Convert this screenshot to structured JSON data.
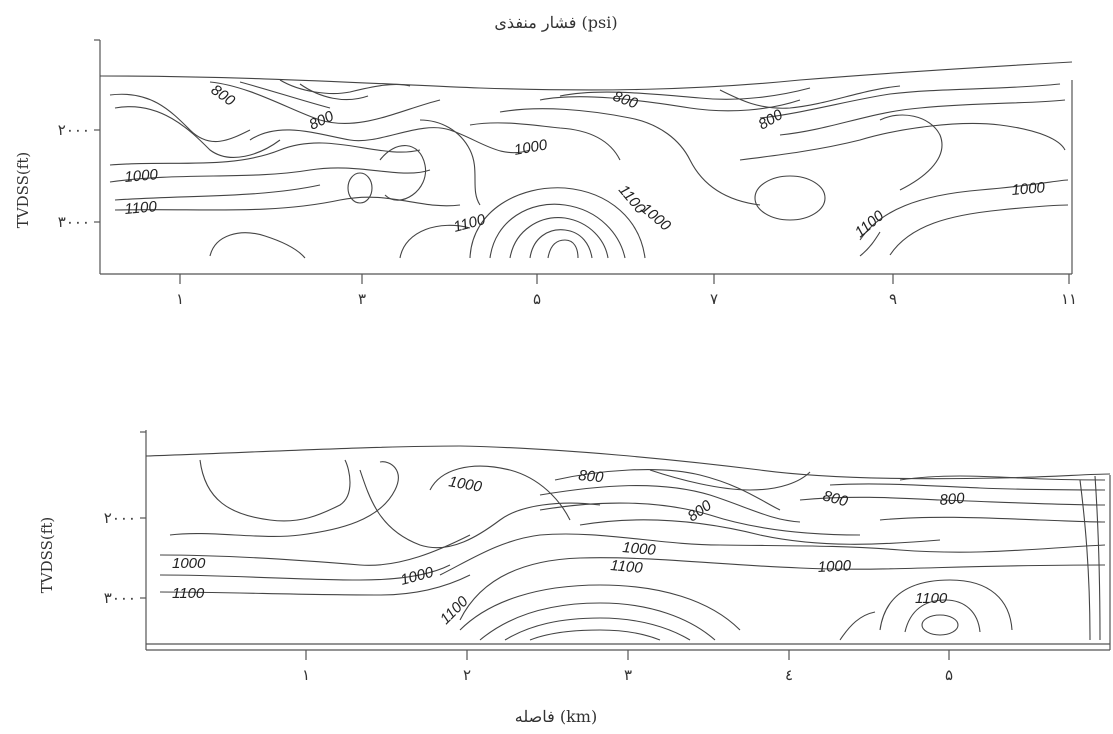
{
  "title": "فشار منفذی (psi)",
  "xlabel": "فاصله (km)",
  "chart_data": [
    {
      "type": "contour",
      "ylabel": "TVDSS(ft)",
      "y_ticks": [
        "۲۰۰۰",
        "۳۰۰۰"
      ],
      "x_ticks": [
        "۱",
        "۳",
        "۵",
        "۷",
        "۹",
        "۱۱"
      ],
      "contour_labels": [
        "800",
        "800",
        "800",
        "800",
        "1000",
        "1100",
        "1000",
        "1100",
        "1100",
        "1000",
        "1100",
        "1000",
        "1000"
      ]
    },
    {
      "type": "contour",
      "ylabel": "TVDSS(ft)",
      "y_ticks": [
        "۲۰۰۰",
        "۳۰۰۰"
      ],
      "x_ticks": [
        "۱",
        "۲",
        "۳",
        "٤",
        "۵"
      ],
      "contour_labels": [
        "1000",
        "800",
        "800",
        "800",
        "800",
        "1000",
        "1100",
        "1000",
        "1000",
        "1000",
        "1100",
        "1100",
        "1100"
      ]
    }
  ]
}
